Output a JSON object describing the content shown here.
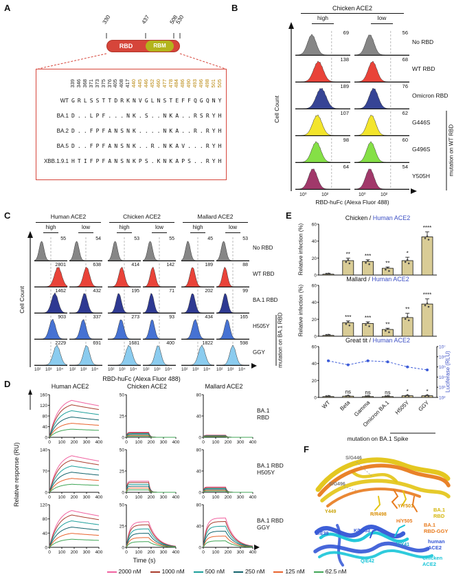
{
  "panelA": {
    "label": "A",
    "domain": {
      "ticks": [
        "330",
        "437",
        "508",
        "530"
      ],
      "rbd": "RBD",
      "rbm": "RBM",
      "rbd_color": "#d6453a",
      "rbm_color": "#b3b41c"
    },
    "alignment": {
      "gold_color": "#b8860b",
      "positions": [
        {
          "num": "339",
          "gold": false
        },
        {
          "num": "346",
          "gold": false
        },
        {
          "num": "368",
          "gold": false
        },
        {
          "num": "371",
          "gold": false
        },
        {
          "num": "373",
          "gold": false
        },
        {
          "num": "375",
          "gold": false
        },
        {
          "num": "376",
          "gold": false
        },
        {
          "num": "405",
          "gold": false
        },
        {
          "num": "408",
          "gold": false
        },
        {
          "num": "417",
          "gold": false
        },
        {
          "num": "440",
          "gold": true
        },
        {
          "num": "445",
          "gold": true
        },
        {
          "num": "446",
          "gold": true
        },
        {
          "num": "452",
          "gold": true
        },
        {
          "num": "460",
          "gold": true
        },
        {
          "num": "477",
          "gold": true
        },
        {
          "num": "478",
          "gold": true
        },
        {
          "num": "484",
          "gold": true
        },
        {
          "num": "486",
          "gold": true
        },
        {
          "num": "490",
          "gold": true
        },
        {
          "num": "493",
          "gold": true
        },
        {
          "num": "496",
          "gold": true
        },
        {
          "num": "498",
          "gold": true
        },
        {
          "num": "501",
          "gold": true
        },
        {
          "num": "505",
          "gold": true
        }
      ],
      "rows": [
        {
          "name": "WT",
          "seq": [
            "G",
            "R",
            "L",
            "S",
            "S",
            "T",
            "T",
            "D",
            "R",
            "K",
            "N",
            "V",
            "G",
            "L",
            "N",
            "S",
            "T",
            "E",
            "F",
            "F",
            "Q",
            "G",
            "Q",
            "N",
            "Y"
          ]
        },
        {
          "name": "BA.1",
          "seq": [
            "D",
            ".",
            ".",
            "L",
            "P",
            "F",
            ".",
            ".",
            ".",
            "N",
            "K",
            ".",
            "S",
            ".",
            ".",
            "N",
            "K",
            "A",
            ".",
            ".",
            "R",
            "S",
            "R",
            "Y",
            "H"
          ]
        },
        {
          "name": "BA.2",
          "seq": [
            "D",
            ".",
            ".",
            "F",
            "P",
            "F",
            "A",
            "N",
            "S",
            "N",
            "K",
            ".",
            ".",
            ".",
            ".",
            "N",
            "K",
            "A",
            ".",
            ".",
            "R",
            ".",
            "R",
            "Y",
            "H"
          ]
        },
        {
          "name": "BA.5",
          "seq": [
            "D",
            ".",
            ".",
            "F",
            "P",
            "F",
            "A",
            "N",
            "S",
            "N",
            "K",
            ".",
            ".",
            "R",
            ".",
            "N",
            "K",
            "A",
            "V",
            ".",
            ".",
            ".",
            "R",
            "Y",
            "H"
          ]
        },
        {
          "name": "XBB.1.9.1",
          "seq": [
            "H",
            "T",
            "I",
            "F",
            "P",
            "F",
            "A",
            "N",
            "S",
            "N",
            "K",
            "P",
            "S",
            ".",
            "K",
            "N",
            "K",
            "A",
            "P",
            "S",
            ".",
            ".",
            "R",
            "Y",
            "H"
          ]
        }
      ]
    }
  },
  "panelB": {
    "label": "B",
    "title": "Chicken ACE2",
    "col_headers": [
      "high",
      "low"
    ],
    "y_axis": "Cell Count",
    "x_axis": "RBD-huFc (Alexa Fluor 488)",
    "x_ticks": [
      "10⁰",
      "10²"
    ],
    "bracket_label": "mutation on WT RBD",
    "rows": [
      {
        "name": "No RBD",
        "color": "#7f7f7f",
        "counts": [
          "69",
          "56"
        ],
        "peaks": [
          0.3,
          0.28
        ]
      },
      {
        "name": "WT RBD",
        "color": "#e8392e",
        "counts": [
          "138",
          "68"
        ],
        "peaks": [
          0.42,
          0.33
        ]
      },
      {
        "name": "Omicron RBD",
        "color": "#2b3a8f",
        "counts": [
          "189",
          "76"
        ],
        "peaks": [
          0.47,
          0.35
        ]
      },
      {
        "name": "G446S",
        "color": "#f2e421",
        "counts": [
          "107",
          "62"
        ],
        "peaks": [
          0.4,
          0.31
        ]
      },
      {
        "name": "G496S",
        "color": "#7ede3c",
        "counts": [
          "98",
          "60"
        ],
        "peaks": [
          0.38,
          0.3
        ]
      },
      {
        "name": "Y505H",
        "color": "#9c2d62",
        "counts": [
          "64",
          "54"
        ],
        "peaks": [
          0.32,
          0.28
        ]
      }
    ]
  },
  "panelC": {
    "label": "C",
    "groups": [
      {
        "title": "Human ACE2",
        "cols": [
          "high",
          "low"
        ]
      },
      {
        "title": "Chicken ACE2",
        "cols": [
          "high",
          "low"
        ]
      },
      {
        "title": "Mallard ACE2",
        "cols": [
          "high",
          "low"
        ]
      }
    ],
    "y_axis": "Cell Count",
    "x_axis": "RBD-huFc (Alexa Fluor 488)",
    "x_ticks": [
      "10²",
      "10³",
      "10⁴"
    ],
    "bracket_label": "mutation on BA.1 RBD",
    "rows": [
      {
        "name": "No RBD",
        "color": "#7f7f7f",
        "counts": [
          "55",
          "54",
          "53",
          "55",
          "45",
          "53"
        ],
        "peaks": [
          0.22,
          0.22,
          0.22,
          0.22,
          0.2,
          0.22
        ]
      },
      {
        "name": "WT RBD",
        "color": "#e8392e",
        "counts": [
          "2801",
          "638",
          "414",
          "142",
          "189",
          "88"
        ],
        "peaks": [
          0.72,
          0.52,
          0.42,
          0.3,
          0.34,
          0.26
        ]
      },
      {
        "name": "BA.1 RBD",
        "color": "#232e8c",
        "counts": [
          "1462",
          "432",
          "195",
          "71",
          "202",
          "99"
        ],
        "peaks": [
          0.62,
          0.46,
          0.33,
          0.26,
          0.34,
          0.27
        ]
      },
      {
        "name": "H505Y",
        "color": "#3c6ad1",
        "counts": [
          "903",
          "337",
          "273",
          "93",
          "434",
          "165"
        ],
        "peaks": [
          0.55,
          0.42,
          0.4,
          0.28,
          0.42,
          0.33
        ]
      },
      {
        "name": "GGY",
        "color": "#85c9ee",
        "counts": [
          "2229",
          "691",
          "1681",
          "400",
          "1822",
          "598"
        ],
        "peaks": [
          0.68,
          0.52,
          0.64,
          0.46,
          0.62,
          0.5
        ]
      }
    ]
  },
  "panelD": {
    "label": "D",
    "col_titles": [
      "Human ACE2",
      "Chicken ACE2",
      "Mallard ACE2"
    ],
    "row_titles": [
      [
        "BA.1",
        "RBD"
      ],
      [
        "BA.1 RBD",
        "H505Y"
      ],
      [
        "BA.1 RBD",
        "GGY"
      ]
    ],
    "y_axis": "Relative response (RU)",
    "x_axis": "Time (s)",
    "x_ticks": [
      0,
      100,
      200,
      300,
      400
    ],
    "legend": [
      {
        "label": "2000 nM",
        "color": "#f0619f"
      },
      {
        "label": "1000 nM",
        "color": "#a93a2b"
      },
      {
        "label": "500 nM",
        "color": "#1a9e9a"
      },
      {
        "label": "250 nM",
        "color": "#11626b"
      },
      {
        "label": "125 nM",
        "color": "#e8622c"
      },
      {
        "label": "62.5 nM",
        "color": "#3fa555"
      }
    ],
    "subplots": [
      [
        {
          "ymax": 160,
          "yticks": [
            0,
            40,
            80,
            120,
            160
          ],
          "rmax": 150,
          "shape": "kinetic"
        },
        {
          "ymax": 50,
          "yticks": [
            0,
            25,
            50
          ],
          "rmax": 6,
          "shape": "box"
        },
        {
          "ymax": 80,
          "yticks": [
            0,
            40,
            80
          ],
          "rmax": 4,
          "shape": "box"
        }
      ],
      [
        {
          "ymax": 140,
          "yticks": [
            0,
            70,
            140
          ],
          "rmax": 130,
          "shape": "kinetic"
        },
        {
          "ymax": 50,
          "yticks": [
            0,
            25,
            50
          ],
          "rmax": 13,
          "shape": "box"
        },
        {
          "ymax": 80,
          "yticks": [
            0,
            40,
            80
          ],
          "rmax": 10,
          "shape": "box"
        }
      ],
      [
        {
          "ymax": 120,
          "yticks": [
            0,
            40,
            80,
            120
          ],
          "rmax": 112,
          "shape": "kinetic"
        },
        {
          "ymax": 50,
          "yticks": [
            0,
            25,
            50
          ],
          "rmax": 30,
          "shape": "fastk"
        },
        {
          "ymax": 80,
          "yticks": [
            0,
            40,
            80
          ],
          "rmax": 55,
          "shape": "fastk"
        }
      ]
    ]
  },
  "panelE": {
    "label": "E",
    "bar_color": "#d9cc96",
    "blue": "#3c4fc4",
    "categories": [
      "WT",
      "Beta",
      "Gamma",
      "Omicron BA.1",
      "H505Y",
      "GGY"
    ],
    "x_caption": "mutation on BA.1 Spike",
    "charts": [
      {
        "title_black": "Chicken /",
        "title_blue": "Human ACE2",
        "ylabel": "Relative infection (%)",
        "ymax": 60,
        "yticks": [
          0,
          20,
          40,
          60
        ],
        "values": [
          1,
          17,
          16,
          8,
          17,
          45
        ],
        "errors": [
          0.5,
          3,
          2,
          1.5,
          4,
          6
        ],
        "sig": [
          "",
          "**",
          "***",
          "**",
          "*",
          "****"
        ]
      },
      {
        "title_black": "Mallard /",
        "title_blue": "Human ACE2",
        "ylabel": "Relative infection (%)",
        "ymax": 60,
        "yticks": [
          0,
          20,
          40,
          60
        ],
        "values": [
          1,
          16,
          15,
          8,
          22,
          38
        ],
        "errors": [
          0.5,
          2,
          2,
          1.5,
          5,
          6
        ],
        "sig": [
          "",
          "***",
          "***",
          "**",
          "**",
          "****"
        ]
      },
      {
        "title_black": "Great tit /",
        "title_blue": "Human ACE2",
        "ymax": 60,
        "yticks": [
          0,
          20,
          40,
          60
        ],
        "values": [
          1,
          1.5,
          1,
          1,
          2,
          2
        ],
        "errors": [
          0.3,
          0.5,
          0.3,
          0.3,
          0.5,
          0.5
        ],
        "sig": [
          "",
          "ns",
          "ns",
          "ns",
          "*",
          "*"
        ],
        "right_ylabel": "Luciferase (RLU)",
        "right_ticks": [
          "10⁷",
          "10⁶",
          "10⁵",
          "10⁴",
          "10³",
          "10²"
        ],
        "line_values_log": [
          5.6,
          5.2,
          5.6,
          5.5,
          5.0,
          4.7
        ],
        "line_color": "#3c5bd8"
      }
    ]
  },
  "panelF": {
    "label": "F",
    "colors": {
      "ba1": "#e3c414",
      "ggy": "#e87b1e",
      "human": "#3356d6",
      "chicken": "#18c5d8"
    },
    "residues": [
      {
        "text": "S/G446",
        "color": "#777777"
      },
      {
        "text": "S/G496",
        "color": "#777777"
      },
      {
        "text": "Y449",
        "color": "#c9a40a"
      },
      {
        "text": "R/R498",
        "color": "#d98e04"
      },
      {
        "text": "Y/Y501",
        "color": "#d98e04"
      },
      {
        "text": "H/Y505",
        "color": "#e87b1e"
      },
      {
        "text": "D/E38",
        "color": "#3356d6"
      },
      {
        "text": "K/N353",
        "color": "#3356d6"
      },
      {
        "text": "Y/Y41",
        "color": "#18a0c8"
      },
      {
        "text": "Q/E42",
        "color": "#18c5d8"
      }
    ],
    "legend": [
      {
        "lines": [
          "BA.1",
          "RBD"
        ],
        "color": "#d4b50a"
      },
      {
        "lines": [
          "BA.1",
          "RBD-GGY"
        ],
        "color": "#e87b1e"
      },
      {
        "lines": [
          "human",
          "ACE2"
        ],
        "color": "#3356d6"
      },
      {
        "lines": [
          "Chicken",
          "ACE2"
        ],
        "color": "#18c5d8"
      }
    ]
  }
}
